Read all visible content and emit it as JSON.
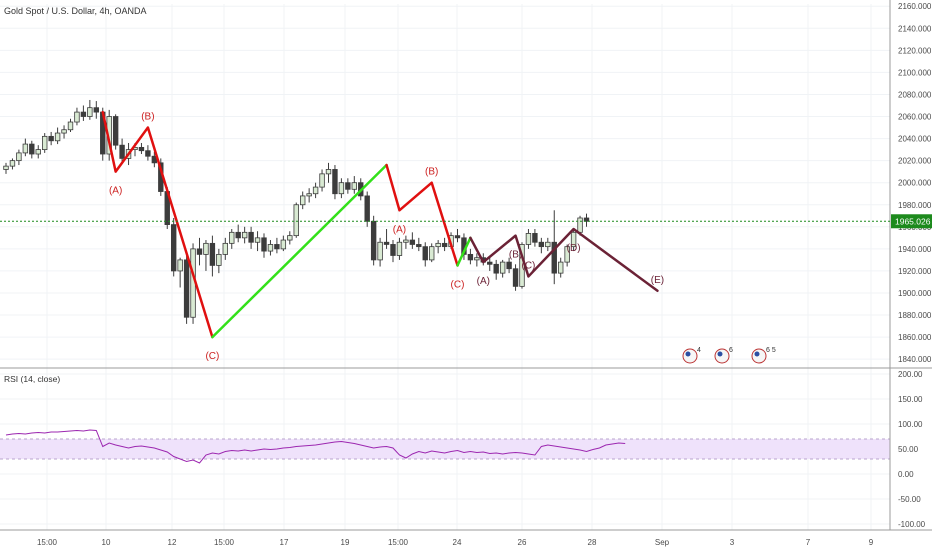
{
  "header": {
    "symbol_title": "Gold Spot / U.S. Dollar, 4h, OANDA"
  },
  "rsi_pane": {
    "title": "RSI (14, close)"
  },
  "colors": {
    "bull_candle": "#d9ead3",
    "bear_candle": "#3c3c3c",
    "wave_red": "#e01010",
    "wave_green": "#33e01a",
    "wave_maroon": "#6b2236",
    "label_red": "#cc1f1f",
    "label_maroon": "#6b2236",
    "price_line": "#1d8a1d",
    "rsi_line": "#9c27b0",
    "rsi_band": "#efe2fb"
  },
  "chart_data": [
    {
      "type": "candlestick",
      "title": "Gold Spot / U.S. Dollar, 4h, OANDA",
      "x_tick_labels": [
        "15:00",
        "10",
        "12",
        "15:00",
        "17",
        "19",
        "15:00",
        "24",
        "26",
        "28",
        "Sep",
        "3",
        "7",
        "9"
      ],
      "y_tick_labels": [
        "1840.000",
        "1860.000",
        "1880.000",
        "1900.000",
        "1920.000",
        "1940.000",
        "1960.000",
        "1980.000",
        "2000.000",
        "2020.000",
        "2040.000",
        "2060.000",
        "2080.000",
        "2100.000",
        "2120.000",
        "2140.000",
        "2160.000"
      ],
      "ylim": [
        1832,
        2162
      ],
      "current_price": 1965.026,
      "current_price_label": "1965.026",
      "candles": [
        {
          "o": 2012,
          "h": 2018,
          "l": 2008,
          "c": 2015
        },
        {
          "o": 2015,
          "h": 2022,
          "l": 2012,
          "c": 2020
        },
        {
          "o": 2020,
          "h": 2030,
          "l": 2016,
          "c": 2027
        },
        {
          "o": 2027,
          "h": 2040,
          "l": 2024,
          "c": 2035
        },
        {
          "o": 2035,
          "h": 2038,
          "l": 2022,
          "c": 2026
        },
        {
          "o": 2026,
          "h": 2034,
          "l": 2022,
          "c": 2030
        },
        {
          "o": 2030,
          "h": 2045,
          "l": 2027,
          "c": 2042
        },
        {
          "o": 2042,
          "h": 2046,
          "l": 2034,
          "c": 2038
        },
        {
          "o": 2038,
          "h": 2050,
          "l": 2035,
          "c": 2045
        },
        {
          "o": 2045,
          "h": 2052,
          "l": 2040,
          "c": 2048
        },
        {
          "o": 2048,
          "h": 2058,
          "l": 2046,
          "c": 2055
        },
        {
          "o": 2055,
          "h": 2068,
          "l": 2052,
          "c": 2064
        },
        {
          "o": 2064,
          "h": 2070,
          "l": 2056,
          "c": 2060
        },
        {
          "o": 2060,
          "h": 2075,
          "l": 2057,
          "c": 2068
        },
        {
          "o": 2068,
          "h": 2074,
          "l": 2058,
          "c": 2064
        },
        {
          "o": 2064,
          "h": 2068,
          "l": 2020,
          "c": 2026
        },
        {
          "o": 2026,
          "h": 2066,
          "l": 2020,
          "c": 2060
        },
        {
          "o": 2060,
          "h": 2062,
          "l": 2030,
          "c": 2034
        },
        {
          "o": 2034,
          "h": 2040,
          "l": 2018,
          "c": 2022
        },
        {
          "o": 2022,
          "h": 2036,
          "l": 2016,
          "c": 2030
        },
        {
          "o": 2030,
          "h": 2036,
          "l": 2024,
          "c": 2032
        },
        {
          "o": 2032,
          "h": 2036,
          "l": 2026,
          "c": 2029
        },
        {
          "o": 2029,
          "h": 2034,
          "l": 2020,
          "c": 2024
        },
        {
          "o": 2024,
          "h": 2028,
          "l": 2014,
          "c": 2018
        },
        {
          "o": 2018,
          "h": 2022,
          "l": 1988,
          "c": 1992
        },
        {
          "o": 1992,
          "h": 1996,
          "l": 1958,
          "c": 1962
        },
        {
          "o": 1962,
          "h": 1968,
          "l": 1915,
          "c": 1920
        },
        {
          "o": 1920,
          "h": 1932,
          "l": 1905,
          "c": 1930
        },
        {
          "o": 1930,
          "h": 1934,
          "l": 1872,
          "c": 1878
        },
        {
          "o": 1878,
          "h": 1945,
          "l": 1872,
          "c": 1940
        },
        {
          "o": 1940,
          "h": 1950,
          "l": 1925,
          "c": 1935
        },
        {
          "o": 1935,
          "h": 1948,
          "l": 1920,
          "c": 1945
        },
        {
          "o": 1945,
          "h": 1952,
          "l": 1915,
          "c": 1925
        },
        {
          "o": 1925,
          "h": 1940,
          "l": 1918,
          "c": 1935
        },
        {
          "o": 1935,
          "h": 1950,
          "l": 1930,
          "c": 1945
        },
        {
          "o": 1945,
          "h": 1958,
          "l": 1940,
          "c": 1955
        },
        {
          "o": 1955,
          "h": 1962,
          "l": 1946,
          "c": 1950
        },
        {
          "o": 1950,
          "h": 1960,
          "l": 1945,
          "c": 1955
        },
        {
          "o": 1955,
          "h": 1960,
          "l": 1940,
          "c": 1946
        },
        {
          "o": 1946,
          "h": 1956,
          "l": 1938,
          "c": 1950
        },
        {
          "o": 1950,
          "h": 1954,
          "l": 1932,
          "c": 1938
        },
        {
          "o": 1938,
          "h": 1948,
          "l": 1934,
          "c": 1944
        },
        {
          "o": 1944,
          "h": 1950,
          "l": 1936,
          "c": 1940
        },
        {
          "o": 1940,
          "h": 1952,
          "l": 1938,
          "c": 1948
        },
        {
          "o": 1948,
          "h": 1956,
          "l": 1944,
          "c": 1952
        },
        {
          "o": 1952,
          "h": 1982,
          "l": 1950,
          "c": 1980
        },
        {
          "o": 1980,
          "h": 1992,
          "l": 1976,
          "c": 1988
        },
        {
          "o": 1988,
          "h": 1995,
          "l": 1982,
          "c": 1990
        },
        {
          "o": 1990,
          "h": 2000,
          "l": 1986,
          "c": 1996
        },
        {
          "o": 1996,
          "h": 2012,
          "l": 1992,
          "c": 2008
        },
        {
          "o": 2008,
          "h": 2018,
          "l": 2000,
          "c": 2012
        },
        {
          "o": 2012,
          "h": 2016,
          "l": 1985,
          "c": 1990
        },
        {
          "o": 1990,
          "h": 2004,
          "l": 1986,
          "c": 2000
        },
        {
          "o": 2000,
          "h": 2004,
          "l": 1990,
          "c": 1994
        },
        {
          "o": 1994,
          "h": 2006,
          "l": 1990,
          "c": 2000
        },
        {
          "o": 2000,
          "h": 2004,
          "l": 1984,
          "c": 1988
        },
        {
          "o": 1988,
          "h": 1992,
          "l": 1960,
          "c": 1965
        },
        {
          "o": 1965,
          "h": 1970,
          "l": 1925,
          "c": 1930
        },
        {
          "o": 1930,
          "h": 1950,
          "l": 1924,
          "c": 1946
        },
        {
          "o": 1946,
          "h": 1958,
          "l": 1940,
          "c": 1944
        },
        {
          "o": 1944,
          "h": 1948,
          "l": 1928,
          "c": 1934
        },
        {
          "o": 1934,
          "h": 1950,
          "l": 1930,
          "c": 1946
        },
        {
          "o": 1946,
          "h": 1952,
          "l": 1940,
          "c": 1948
        },
        {
          "o": 1948,
          "h": 1955,
          "l": 1940,
          "c": 1944
        },
        {
          "o": 1944,
          "h": 1950,
          "l": 1938,
          "c": 1942
        },
        {
          "o": 1942,
          "h": 1946,
          "l": 1924,
          "c": 1930
        },
        {
          "o": 1930,
          "h": 1945,
          "l": 1928,
          "c": 1942
        },
        {
          "o": 1942,
          "h": 1948,
          "l": 1936,
          "c": 1945
        },
        {
          "o": 1945,
          "h": 1950,
          "l": 1938,
          "c": 1942
        },
        {
          "o": 1942,
          "h": 1955,
          "l": 1940,
          "c": 1952
        },
        {
          "o": 1952,
          "h": 1958,
          "l": 1946,
          "c": 1950
        },
        {
          "o": 1950,
          "h": 1954,
          "l": 1930,
          "c": 1935
        },
        {
          "o": 1935,
          "h": 1940,
          "l": 1926,
          "c": 1930
        },
        {
          "o": 1930,
          "h": 1936,
          "l": 1924,
          "c": 1932
        },
        {
          "o": 1932,
          "h": 1936,
          "l": 1925,
          "c": 1928
        },
        {
          "o": 1928,
          "h": 1932,
          "l": 1920,
          "c": 1926
        },
        {
          "o": 1926,
          "h": 1930,
          "l": 1912,
          "c": 1918
        },
        {
          "o": 1918,
          "h": 1930,
          "l": 1914,
          "c": 1928
        },
        {
          "o": 1928,
          "h": 1932,
          "l": 1918,
          "c": 1922
        },
        {
          "o": 1922,
          "h": 1926,
          "l": 1902,
          "c": 1906
        },
        {
          "o": 1906,
          "h": 1946,
          "l": 1904,
          "c": 1944
        },
        {
          "o": 1944,
          "h": 1958,
          "l": 1940,
          "c": 1954
        },
        {
          "o": 1954,
          "h": 1958,
          "l": 1942,
          "c": 1946
        },
        {
          "o": 1946,
          "h": 1950,
          "l": 1936,
          "c": 1942
        },
        {
          "o": 1942,
          "h": 1950,
          "l": 1938,
          "c": 1946
        },
        {
          "o": 1946,
          "h": 1975,
          "l": 1908,
          "c": 1918
        },
        {
          "o": 1918,
          "h": 1932,
          "l": 1914,
          "c": 1928
        },
        {
          "o": 1928,
          "h": 1944,
          "l": 1924,
          "c": 1942
        },
        {
          "o": 1942,
          "h": 1958,
          "l": 1938,
          "c": 1955
        },
        {
          "o": 1955,
          "h": 1970,
          "l": 1952,
          "c": 1968
        },
        {
          "o": 1968,
          "h": 1972,
          "l": 1960,
          "c": 1965
        }
      ],
      "elliott_waves": [
        {
          "name": "first decline",
          "color": "wave_red",
          "points": [
            [
              15,
              2064
            ],
            [
              17,
              2010
            ],
            [
              22,
              2050
            ],
            [
              32,
              1860
            ]
          ]
        },
        {
          "name": "rally",
          "color": "wave_green",
          "points": [
            [
              32,
              1860
            ],
            [
              59,
              2016
            ]
          ]
        },
        {
          "name": "second decline",
          "color": "wave_red",
          "points": [
            [
              59,
              2016
            ],
            [
              61,
              1975
            ],
            [
              66,
              2000
            ],
            [
              70,
              1925
            ]
          ]
        },
        {
          "name": "small green",
          "color": "wave_green",
          "points": [
            [
              70,
              1925
            ],
            [
              72,
              1950
            ]
          ]
        },
        {
          "name": "triangle",
          "color": "wave_maroon",
          "points": [
            [
              72,
              1950
            ],
            [
              74,
              1928
            ],
            [
              79,
              1952
            ],
            [
              81,
              1915
            ],
            [
              88,
              1958
            ],
            [
              101,
              1902
            ]
          ]
        }
      ],
      "wave_labels": [
        {
          "text": "(A)",
          "x": 17,
          "y": 2010,
          "color": "label_red"
        },
        {
          "text": "(B)",
          "x": 22,
          "y": 2050,
          "color": "label_red"
        },
        {
          "text": "(C)",
          "x": 32,
          "y": 1860,
          "color": "label_red"
        },
        {
          "text": "(A)",
          "x": 61,
          "y": 1975,
          "color": "label_red"
        },
        {
          "text": "(B)",
          "x": 66,
          "y": 2000,
          "color": "label_red"
        },
        {
          "text": "(C)",
          "x": 70,
          "y": 1925,
          "color": "label_red"
        },
        {
          "text": "(A)",
          "x": 74,
          "y": 1928,
          "color": "label_maroon"
        },
        {
          "text": "(B)",
          "x": 79,
          "y": 1952,
          "color": "label_maroon"
        },
        {
          "text": "(C)",
          "x": 81,
          "y": 1915,
          "color": "label_maroon"
        },
        {
          "text": "(D)",
          "x": 88,
          "y": 1958,
          "color": "label_maroon"
        },
        {
          "text": "(E)",
          "x": 101,
          "y": 1902,
          "color": "label_maroon"
        }
      ],
      "event_badges": [
        {
          "count": "4"
        },
        {
          "count": "6"
        },
        {
          "count": "6 5"
        }
      ]
    },
    {
      "type": "line",
      "title": "RSI (14, close)",
      "y_tick_labels": [
        "200.00",
        "150.00",
        "100.00",
        "50.00",
        "0.00",
        "-50.00",
        "-100.00"
      ],
      "ylim": [
        -112,
        212
      ],
      "band": [
        30,
        70
      ],
      "values": [
        78,
        80,
        81,
        80,
        82,
        83,
        82,
        84,
        84,
        85,
        86,
        87,
        86,
        88,
        87,
        55,
        62,
        58,
        55,
        52,
        55,
        56,
        54,
        52,
        48,
        44,
        35,
        30,
        25,
        28,
        22,
        38,
        42,
        40,
        45,
        47,
        46,
        48,
        46,
        48,
        50,
        49,
        50,
        52,
        53,
        55,
        56,
        57,
        58,
        60,
        62,
        64,
        65,
        63,
        61,
        58,
        55,
        52,
        54,
        55,
        52,
        38,
        32,
        40,
        45,
        42,
        46,
        44,
        42,
        45,
        47,
        43,
        45,
        43,
        44,
        41,
        42,
        40,
        42,
        43,
        42,
        40,
        38,
        55,
        58,
        56,
        54,
        52,
        50,
        48,
        45,
        49,
        52,
        58,
        60,
        62,
        61
      ]
    }
  ]
}
